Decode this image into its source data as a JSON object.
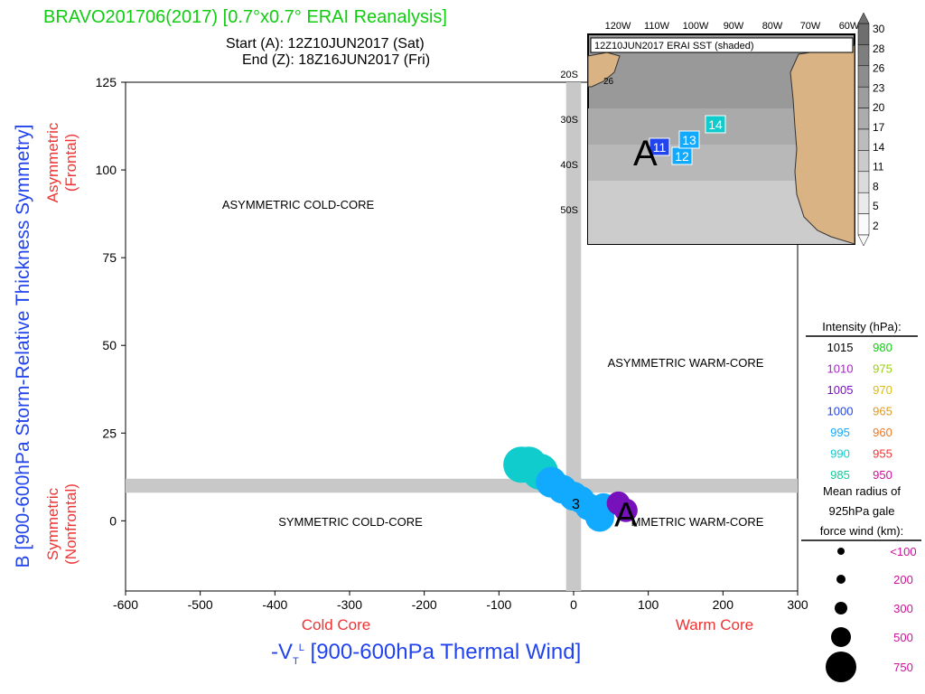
{
  "header": {
    "title": "BRAVO201706(2017) [0.7°x0.7° ERAI Reanalysis]",
    "start": "Start (A): 12Z10JUN2017 (Sat)",
    "end": "End (Z): 18Z16JUN2017 (Fri)"
  },
  "xlabel_prefix": "-V",
  "xlabel_sub": "T",
  "xlabel_sup": "L",
  "xlabel_rest": " [900-600hPa Thermal Wind]",
  "ylabel": "B [900-600hPa Storm-Relative Thickness Symmetry]",
  "y_side_labels": {
    "asym1": "Asymmetric",
    "asym2": "(Frontal)",
    "sym1": "Symmetric",
    "sym2": "(Nonfrontal)"
  },
  "x_side_labels": {
    "cold": "Cold Core",
    "warm": "Warm Core"
  },
  "quadrants": {
    "tl": "ASYMMETRIC COLD-CORE",
    "tr": "ASYMMETRIC WARM-CORE",
    "bl": "SYMMETRIC COLD-CORE",
    "br": "MMETRIC WARM-CORE"
  },
  "colors": {
    "title": "#11cc11",
    "axis_label": "#2244ee",
    "side_label": "#ee3333",
    "gray_band": "#c8c8c8",
    "track_light_blue": "#11aaff",
    "track_teal": "#11cccc",
    "track_purple": "#7711bb",
    "land": "#d9b383"
  },
  "chart_data": {
    "type": "scatter",
    "title": "BRAVO201706(2017) [0.7°x0.7° ERAI Reanalysis]",
    "xlabel": "-VTL [900-600hPa Thermal Wind]",
    "ylabel": "B [900-600hPa Storm-Relative Thickness Symmetry]",
    "xlim": [
      -600,
      300
    ],
    "ylim": [
      -20,
      125
    ],
    "xticks": [
      -600,
      -500,
      -400,
      -300,
      -200,
      -100,
      0,
      100,
      200,
      300
    ],
    "yticks": [
      0,
      25,
      50,
      75,
      100,
      125
    ],
    "gray_band": {
      "x": [
        -10,
        10
      ],
      "y": [
        8,
        12
      ]
    },
    "track": [
      {
        "x": 70,
        "y": 3,
        "color": "#7711bb",
        "r": 13
      },
      {
        "x": 60,
        "y": 5,
        "color": "#7711bb",
        "r": 13
      },
      {
        "x": 40,
        "y": 4,
        "color": "#11aaff",
        "r": 15
      },
      {
        "x": 35,
        "y": 1,
        "color": "#11aaff",
        "r": 16
      },
      {
        "x": 30,
        "y": 3,
        "color": "#11aaff",
        "r": 16
      },
      {
        "x": 20,
        "y": 4,
        "color": "#11aaff",
        "r": 15
      },
      {
        "x": 10,
        "y": 6,
        "color": "#11aaff",
        "r": 15
      },
      {
        "x": 0,
        "y": 7,
        "color": "#11aaff",
        "r": 16
      },
      {
        "x": -15,
        "y": 9,
        "color": "#11aaff",
        "r": 16
      },
      {
        "x": -30,
        "y": 11,
        "color": "#11aaff",
        "r": 17
      },
      {
        "x": -45,
        "y": 14,
        "color": "#11cccc",
        "r": 20
      },
      {
        "x": -60,
        "y": 16,
        "color": "#11cccc",
        "r": 20
      },
      {
        "x": -70,
        "y": 16,
        "color": "#11cccc",
        "r": 20
      }
    ],
    "labels": [
      {
        "text": "3",
        "x": 3,
        "y": 4.5,
        "size": 16
      },
      {
        "text": "A",
        "x": 70,
        "y": 1,
        "size": 38
      }
    ]
  },
  "legend": {
    "title": "Intensity (hPa):",
    "rows": [
      {
        "left": "1015",
        "left_color": "#000000",
        "right": "980",
        "right_color": "#11cc11"
      },
      {
        "left": "1010",
        "left_color": "#aa22cc",
        "right": "975",
        "right_color": "#99cc11"
      },
      {
        "left": "1005",
        "left_color": "#7711bb",
        "right": "970",
        "right_color": "#ddbb11"
      },
      {
        "left": "1000",
        "left_color": "#2244ee",
        "right": "965",
        "right_color": "#dd9922"
      },
      {
        "left": "995",
        "left_color": "#11aaff",
        "right": "960",
        "right_color": "#ee7722"
      },
      {
        "left": "990",
        "left_color": "#11cccc",
        "right": "955",
        "right_color": "#ee3333"
      },
      {
        "left": "985",
        "left_color": "#11cc99",
        "right": "950",
        "right_color": "#cc1199"
      }
    ],
    "radius_title1": "Mean radius of",
    "radius_title2": "925hPa gale",
    "radius_title3": "force wind (km):",
    "radius_rows": [
      {
        "label": "<100",
        "dot": 4
      },
      {
        "label": "200",
        "dot": 5
      },
      {
        "label": "300",
        "dot": 7
      },
      {
        "label": "500",
        "dot": 11
      },
      {
        "label": "750",
        "dot": 17
      }
    ]
  },
  "inset": {
    "title": "12Z10JUN2017 ERAI SST (shaded)",
    "lon_labels": [
      "120W",
      "110W",
      "100W",
      "90W",
      "80W",
      "70W",
      "60W"
    ],
    "lat_labels": [
      "20S",
      "30S",
      "40S",
      "50S"
    ],
    "contour_label": "26",
    "boxes": [
      {
        "text": "11",
        "color": "#2244ee"
      },
      {
        "text": "12",
        "color": "#11aaff"
      },
      {
        "text": "13",
        "color": "#11aaff"
      },
      {
        "text": "14",
        "color": "#11cccc"
      }
    ],
    "start_marker": "A",
    "colorbar": [
      "30",
      "28",
      "26",
      "23",
      "20",
      "17",
      "14",
      "11",
      "8",
      "5",
      "2"
    ]
  }
}
